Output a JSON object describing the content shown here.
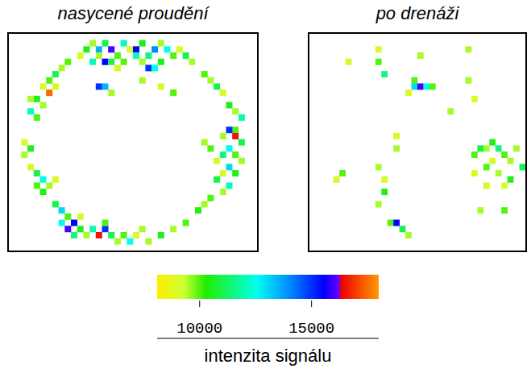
{
  "chart_data": [
    {
      "type": "heatmap",
      "title": "nasycené proudění",
      "xlim": [
        0,
        40
      ],
      "ylim": [
        0,
        35
      ],
      "tick_labels": false,
      "cells": [
        [
          12,
          2,
          10500
        ],
        [
          13,
          1,
          9500
        ],
        [
          14,
          2,
          13500
        ],
        [
          15,
          1,
          11000
        ],
        [
          16,
          2,
          16000
        ],
        [
          17,
          3,
          10000
        ],
        [
          18,
          1,
          12000
        ],
        [
          19,
          2,
          9000
        ],
        [
          20,
          2,
          15500
        ],
        [
          21,
          1,
          10500
        ],
        [
          22,
          3,
          11500
        ],
        [
          23,
          2,
          14000
        ],
        [
          24,
          1,
          9500
        ],
        [
          25,
          2,
          12500
        ],
        [
          26,
          3,
          10000
        ],
        [
          27,
          2,
          9000
        ],
        [
          14,
          3,
          9500
        ],
        [
          15,
          4,
          15500
        ],
        [
          16,
          4,
          11000
        ],
        [
          20,
          3,
          12000
        ],
        [
          21,
          4,
          9500
        ],
        [
          24,
          4,
          10500
        ],
        [
          11,
          3,
          9000
        ],
        [
          28,
          3,
          11000
        ],
        [
          29,
          4,
          9500
        ],
        [
          13,
          4,
          12000
        ],
        [
          18,
          4,
          10000
        ],
        [
          22,
          5,
          15000
        ],
        [
          23,
          5,
          12500
        ],
        [
          17,
          5,
          9000
        ],
        [
          9,
          4,
          10000
        ],
        [
          8,
          5,
          9500
        ],
        [
          7,
          6,
          11000
        ],
        [
          6,
          7,
          10000
        ],
        [
          5,
          8,
          9000
        ],
        [
          6,
          9,
          17500
        ],
        [
          4,
          10,
          10500
        ],
        [
          5,
          11,
          9500
        ],
        [
          3,
          12,
          12000
        ],
        [
          4,
          13,
          10000
        ],
        [
          7,
          8,
          9000
        ],
        [
          3,
          10,
          9500
        ],
        [
          2,
          17,
          9000
        ],
        [
          3,
          18,
          10500
        ],
        [
          2,
          19,
          9500
        ],
        [
          3,
          21,
          9000
        ],
        [
          4,
          22,
          11000
        ],
        [
          5,
          23,
          12500
        ],
        [
          4,
          24,
          10000
        ],
        [
          6,
          24,
          9500
        ],
        [
          5,
          25,
          10500
        ],
        [
          7,
          23,
          9000
        ],
        [
          7,
          27,
          11000
        ],
        [
          8,
          28,
          13000
        ],
        [
          9,
          29,
          10000
        ],
        [
          8,
          30,
          12500
        ],
        [
          9,
          31,
          16000
        ],
        [
          10,
          30,
          15500
        ],
        [
          11,
          31,
          10500
        ],
        [
          12,
          32,
          9500
        ],
        [
          13,
          31,
          12000
        ],
        [
          14,
          32,
          16500
        ],
        [
          15,
          31,
          15000
        ],
        [
          16,
          32,
          11000
        ],
        [
          17,
          33,
          9500
        ],
        [
          18,
          32,
          10000
        ],
        [
          19,
          33,
          12500
        ],
        [
          20,
          32,
          9000
        ],
        [
          22,
          33,
          9500
        ],
        [
          24,
          32,
          10500
        ],
        [
          26,
          31,
          9500
        ],
        [
          28,
          30,
          10000
        ],
        [
          10,
          32,
          11500
        ],
        [
          11,
          29,
          9000
        ],
        [
          15,
          30,
          10000
        ],
        [
          21,
          31,
          9500
        ],
        [
          31,
          6,
          10000
        ],
        [
          32,
          7,
          9500
        ],
        [
          33,
          8,
          11000
        ],
        [
          34,
          9,
          9000
        ],
        [
          35,
          11,
          10500
        ],
        [
          36,
          12,
          9500
        ],
        [
          37,
          13,
          12000
        ],
        [
          36,
          15,
          10000
        ],
        [
          35,
          15,
          15000
        ],
        [
          36,
          16,
          16500
        ],
        [
          37,
          17,
          11000
        ],
        [
          35,
          18,
          12500
        ],
        [
          36,
          19,
          10000
        ],
        [
          37,
          20,
          9500
        ],
        [
          34,
          19,
          11500
        ],
        [
          35,
          21,
          13000
        ],
        [
          36,
          22,
          10500
        ],
        [
          34,
          22,
          9000
        ],
        [
          33,
          23,
          11000
        ],
        [
          35,
          24,
          12000
        ],
        [
          34,
          25,
          9500
        ],
        [
          32,
          26,
          10000
        ],
        [
          31,
          27,
          9500
        ],
        [
          30,
          28,
          10500
        ],
        [
          33,
          20,
          9000
        ],
        [
          32,
          18,
          10000
        ],
        [
          31,
          17,
          9500
        ],
        [
          34,
          16,
          9500
        ],
        [
          14,
          8,
          15000
        ],
        [
          15,
          8,
          13500
        ],
        [
          16,
          9,
          9500
        ],
        [
          24,
          8,
          9000
        ],
        [
          26,
          9,
          10000
        ],
        [
          21,
          7,
          9500
        ]
      ]
    },
    {
      "type": "heatmap",
      "title": "po drenáži",
      "xlim": [
        0,
        36
      ],
      "ylim": [
        0,
        35
      ],
      "tick_labels": false,
      "cells": [
        [
          11,
          2,
          9000
        ],
        [
          11,
          4,
          10000
        ],
        [
          12,
          6,
          11500
        ],
        [
          18,
          3,
          9500
        ],
        [
          17,
          7,
          10000
        ],
        [
          17,
          8,
          13000
        ],
        [
          18,
          8,
          16000
        ],
        [
          19,
          8,
          12500
        ],
        [
          20,
          8,
          10000
        ],
        [
          16,
          9,
          9000
        ],
        [
          26,
          7,
          9500
        ],
        [
          27,
          10,
          9000
        ],
        [
          23,
          12,
          9500
        ],
        [
          14,
          16,
          9000
        ],
        [
          14,
          18,
          9500
        ],
        [
          5,
          22,
          10000
        ],
        [
          4,
          23,
          9000
        ],
        [
          11,
          21,
          9500
        ],
        [
          12,
          23,
          9000
        ],
        [
          12,
          25,
          10500
        ],
        [
          11,
          27,
          9500
        ],
        [
          27,
          19,
          10000
        ],
        [
          28,
          18,
          11000
        ],
        [
          29,
          18,
          9500
        ],
        [
          30,
          17,
          10500
        ],
        [
          31,
          18,
          11500
        ],
        [
          32,
          19,
          10000
        ],
        [
          33,
          20,
          9500
        ],
        [
          30,
          20,
          9000
        ],
        [
          29,
          21,
          10000
        ],
        [
          31,
          22,
          9500
        ],
        [
          33,
          23,
          10500
        ],
        [
          32,
          24,
          9000
        ],
        [
          35,
          21,
          11000
        ],
        [
          34,
          18,
          9500
        ],
        [
          27,
          22,
          9000
        ],
        [
          13,
          30,
          10000
        ],
        [
          14,
          30,
          15500
        ],
        [
          15,
          31,
          11000
        ],
        [
          16,
          32,
          9500
        ],
        [
          29,
          24,
          9000
        ],
        [
          28,
          28,
          9500
        ],
        [
          32,
          28,
          10000
        ],
        [
          6,
          4,
          9000
        ],
        [
          26,
          2,
          9500
        ]
      ]
    }
  ],
  "colorbar": {
    "label": "intenzita signálu",
    "range": [
      8100,
      18000
    ],
    "ticks": [
      10000,
      15000
    ]
  }
}
